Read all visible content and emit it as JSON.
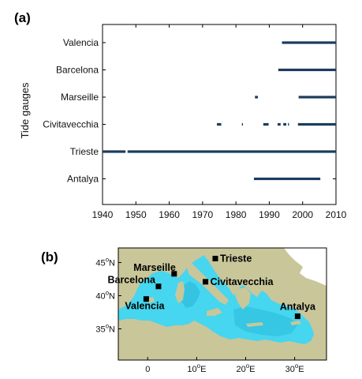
{
  "chart_data": [
    {
      "type": "timeline",
      "panel_label": "(a)",
      "ylabel": "Tide gauges",
      "xlim": [
        1940,
        2010
      ],
      "xticks": [
        1940,
        1950,
        1960,
        1970,
        1980,
        1990,
        2000,
        2010
      ],
      "bar_color": "#1c3c5e",
      "categories": [
        "Valencia",
        "Barcelona",
        "Marseille",
        "Civitavecchia",
        "Trieste",
        "Antalya"
      ],
      "series": [
        {
          "name": "Valencia",
          "segments": [
            [
              1993.8,
              2010
            ]
          ]
        },
        {
          "name": "Barcelona",
          "segments": [
            [
              1992.7,
              2010
            ]
          ]
        },
        {
          "name": "Marseille",
          "segments": [
            [
              1985.7,
              1986.6
            ],
            [
              1998.8,
              2010
            ]
          ]
        },
        {
          "name": "Civitavecchia",
          "segments": [
            [
              1974.3,
              1975.6
            ],
            [
              1981.8,
              1982.1
            ],
            [
              1988.2,
              1989.8
            ],
            [
              1992.5,
              1993.4
            ],
            [
              1994.2,
              1995.1
            ],
            [
              1995.6,
              1995.9
            ],
            [
              1998.6,
              2010
            ]
          ]
        },
        {
          "name": "Trieste",
          "segments": [
            [
              1940,
              1946.9
            ],
            [
              1947.5,
              2010
            ]
          ]
        },
        {
          "name": "Antalya",
          "segments": [
            [
              1985.4,
              2005.3
            ]
          ]
        }
      ]
    },
    {
      "type": "map",
      "panel_label": "(b)",
      "lon_ticks": [
        "0",
        "10",
        "20",
        "30"
      ],
      "lon_tick_values": [
        0,
        10,
        20,
        30
      ],
      "lon_unit": "E",
      "lat_ticks": [
        "35",
        "40",
        "45"
      ],
      "lat_tick_values": [
        35,
        40,
        45
      ],
      "lat_unit": "N",
      "degree_mark": "o",
      "land_color": "#c9c69a",
      "sea_color": "#46d6ef",
      "stations": [
        {
          "name": "Trieste",
          "lon": 13.8,
          "lat": 45.6
        },
        {
          "name": "Marseille",
          "lon": 5.4,
          "lat": 43.3
        },
        {
          "name": "Barcelona",
          "lon": 2.2,
          "lat": 41.4
        },
        {
          "name": "Civitavecchia",
          "lon": 11.8,
          "lat": 42.1
        },
        {
          "name": "Valencia",
          "lon": -0.3,
          "lat": 39.5
        },
        {
          "name": "Antalya",
          "lon": 30.6,
          "lat": 36.9
        }
      ]
    }
  ]
}
